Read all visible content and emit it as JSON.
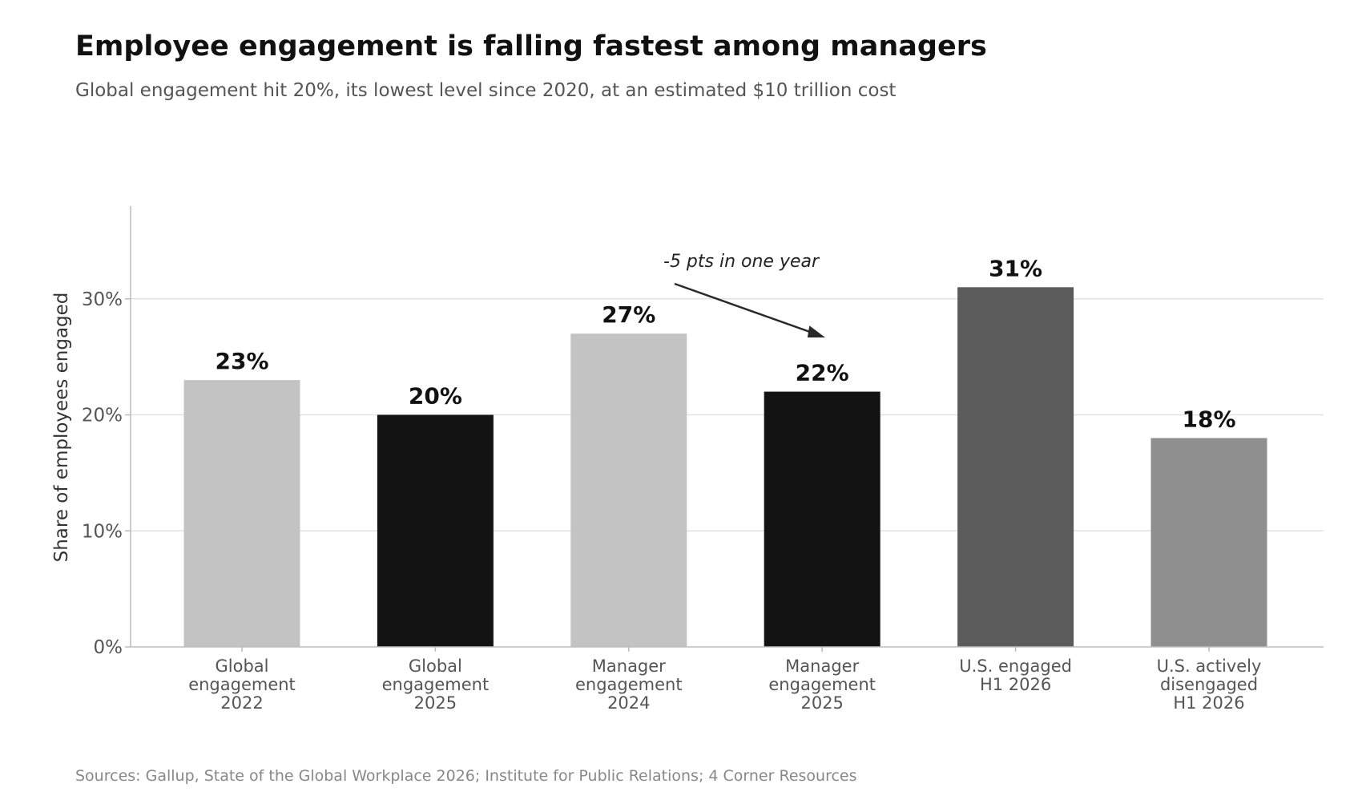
{
  "title": "Employee engagement is falling fastest among managers",
  "subtitle": "Global engagement hit 20%, its lowest level since 2020, at an estimated $10 trillion cost",
  "source": "Sources: Gallup, State of the Global Workplace 2026; Institute for Public Relations; 4 Corner Resources",
  "chart_data": {
    "type": "bar",
    "ylabel": "Share of employees engaged",
    "xlabel": "",
    "ylim": [
      0,
      38
    ],
    "yticks": [
      0,
      10,
      20,
      30
    ],
    "ytick_labels": [
      "0%",
      "10%",
      "20%",
      "30%"
    ],
    "grid": "horizontal",
    "categories": [
      [
        "Global",
        "engagement",
        "2022"
      ],
      [
        "Global",
        "engagement",
        "2025"
      ],
      [
        "Manager",
        "engagement",
        "2024"
      ],
      [
        "Manager",
        "engagement",
        "2025"
      ],
      [
        "U.S. engaged",
        "H1 2026"
      ],
      [
        "U.S. actively",
        "disengaged",
        "H1 2026"
      ]
    ],
    "values": [
      23,
      20,
      27,
      22,
      31,
      18
    ],
    "value_labels": [
      "23%",
      "20%",
      "27%",
      "22%",
      "31%",
      "18%"
    ],
    "colors": [
      "#c3c3c3",
      "#131313",
      "#c3c3c3",
      "#131313",
      "#5c5c5c",
      "#8f8f8f"
    ],
    "annotation": {
      "text": "-5 pts in one year",
      "from_category": 2,
      "to_category": 3,
      "to_value": 27
    }
  }
}
